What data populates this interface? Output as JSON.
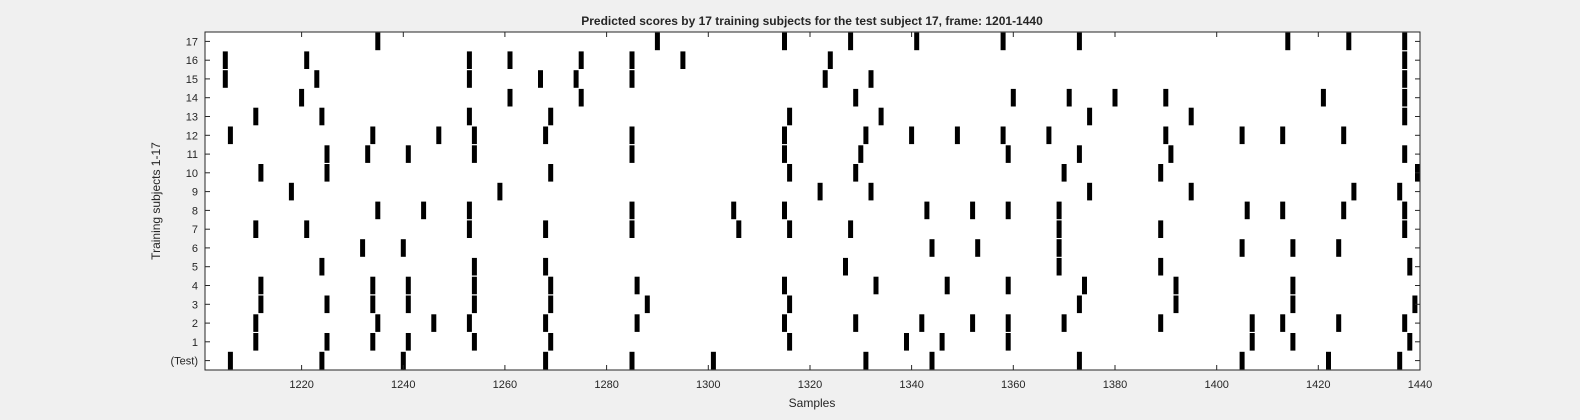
{
  "chart_data": {
    "type": "raster",
    "title": "Predicted scores by 17 training subjects for the test subject 17, frame: 1201-1440",
    "xlabel": "Samples",
    "ylabel": "Training subjects 1-17",
    "xlim": [
      1201,
      1440
    ],
    "xticks": [
      1220,
      1240,
      1260,
      1280,
      1300,
      1320,
      1340,
      1360,
      1380,
      1400,
      1420,
      1440
    ],
    "yticklabels": [
      "(Test)",
      "1",
      "2",
      "3",
      "4",
      "5",
      "6",
      "7",
      "8",
      "9",
      "10",
      "11",
      "12",
      "13",
      "14",
      "15",
      "16",
      "17"
    ],
    "grid": false,
    "colors": {
      "background": "#ffffff",
      "mark": "#000000",
      "axis": "#262626",
      "figure": "#f0f0f0"
    },
    "rows": [
      {
        "label": "(Test)",
        "events": [
          1206,
          1224,
          1240,
          1268,
          1285,
          1301,
          1331,
          1344,
          1373,
          1405,
          1422,
          1436
        ]
      },
      {
        "label": "1",
        "events": [
          1211,
          1225,
          1234,
          1241,
          1254,
          1269,
          1316,
          1339,
          1346,
          1359,
          1407,
          1415,
          1438
        ]
      },
      {
        "label": "2",
        "events": [
          1211,
          1235,
          1246,
          1253,
          1268,
          1286,
          1315,
          1329,
          1342,
          1352,
          1359,
          1370,
          1389,
          1407,
          1413,
          1424,
          1437
        ]
      },
      {
        "label": "3",
        "events": [
          1212,
          1225,
          1234,
          1241,
          1254,
          1269,
          1288,
          1316,
          1373,
          1392,
          1415,
          1439
        ]
      },
      {
        "label": "4",
        "events": [
          1212,
          1234,
          1241,
          1254,
          1269,
          1286,
          1315,
          1333,
          1347,
          1359,
          1374,
          1392,
          1415
        ]
      },
      {
        "label": "5",
        "events": [
          1224,
          1254,
          1268,
          1327,
          1369,
          1389,
          1438
        ]
      },
      {
        "label": "6",
        "events": [
          1232,
          1240,
          1344,
          1353,
          1369,
          1405,
          1415,
          1424
        ]
      },
      {
        "label": "7",
        "events": [
          1211,
          1221,
          1253,
          1268,
          1285,
          1306,
          1316,
          1328,
          1369,
          1389,
          1437
        ]
      },
      {
        "label": "8",
        "events": [
          1235,
          1244,
          1253,
          1285,
          1305,
          1315,
          1343,
          1352,
          1359,
          1369,
          1406,
          1413,
          1425,
          1437
        ]
      },
      {
        "label": "9",
        "events": [
          1218,
          1259,
          1322,
          1332,
          1375,
          1395,
          1427,
          1436
        ]
      },
      {
        "label": "10",
        "events": [
          1212,
          1225,
          1269,
          1316,
          1329,
          1370,
          1389,
          1440
        ]
      },
      {
        "label": "11",
        "events": [
          1225,
          1233,
          1241,
          1254,
          1285,
          1315,
          1330,
          1359,
          1373,
          1391,
          1437
        ]
      },
      {
        "label": "12",
        "events": [
          1206,
          1234,
          1247,
          1254,
          1268,
          1285,
          1315,
          1331,
          1340,
          1349,
          1358,
          1367,
          1390,
          1405,
          1413,
          1425
        ]
      },
      {
        "label": "13",
        "events": [
          1211,
          1224,
          1253,
          1269,
          1316,
          1334,
          1375,
          1395,
          1437
        ]
      },
      {
        "label": "14",
        "events": [
          1220,
          1261,
          1275,
          1329,
          1360,
          1371,
          1380,
          1390,
          1421,
          1437
        ]
      },
      {
        "label": "15",
        "events": [
          1205,
          1223,
          1253,
          1267,
          1274,
          1285,
          1323,
          1332,
          1437
        ]
      },
      {
        "label": "16",
        "events": [
          1205,
          1221,
          1253,
          1261,
          1275,
          1285,
          1295,
          1324,
          1437
        ]
      },
      {
        "label": "17",
        "events": [
          1235,
          1290,
          1315,
          1328,
          1341,
          1358,
          1373,
          1414,
          1426,
          1437
        ]
      }
    ]
  }
}
